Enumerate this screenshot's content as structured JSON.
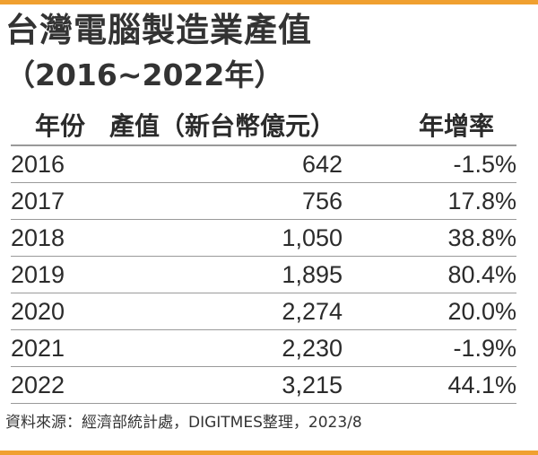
{
  "colors": {
    "accent": "#f0a030",
    "rule": "#9a9a9a",
    "text": "#2b2b2b"
  },
  "title": "台灣電腦製造業產值",
  "subtitle": "（2016~2022年）",
  "source": "資料來源：經濟部統計處，DIGITMES整理，2023/8",
  "chart_data": {
    "type": "table",
    "columns": [
      "年份",
      "產值（新台幣億元）",
      "年增率"
    ],
    "rows": [
      {
        "year": "2016",
        "value": "642",
        "growth": "-1.5%"
      },
      {
        "year": "2017",
        "value": "756",
        "growth": "17.8%"
      },
      {
        "year": "2018",
        "value": "1,050",
        "growth": "38.8%"
      },
      {
        "year": "2019",
        "value": "1,895",
        "growth": "80.4%"
      },
      {
        "year": "2020",
        "value": "2,274",
        "growth": "20.0%"
      },
      {
        "year": "2021",
        "value": "2,230",
        "growth": "-1.9%"
      },
      {
        "year": "2022",
        "value": "3,215",
        "growth": "44.1%"
      }
    ]
  }
}
